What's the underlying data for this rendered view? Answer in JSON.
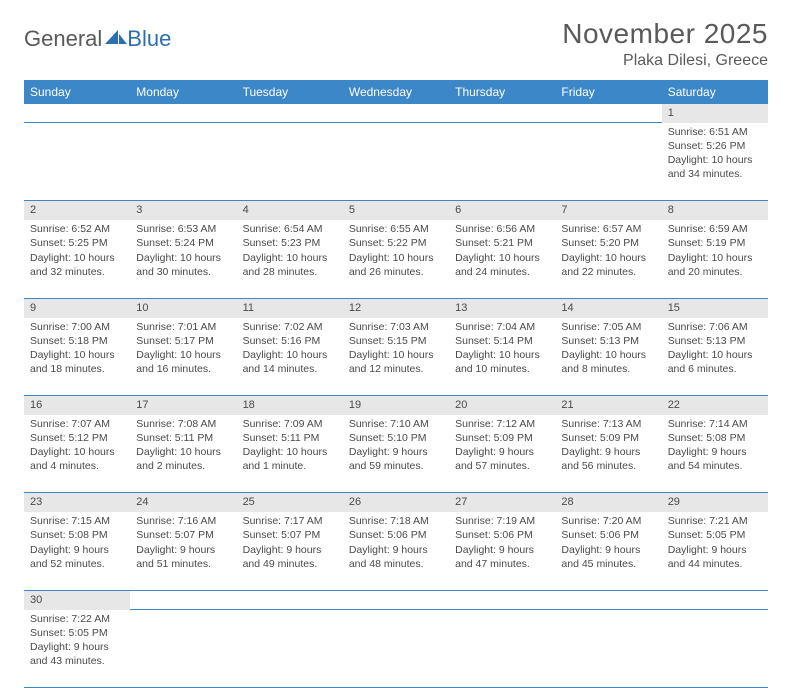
{
  "logo": {
    "general": "General",
    "blue": "Blue"
  },
  "title": "November 2025",
  "location": "Plaka Dilesi, Greece",
  "colors": {
    "header_bg": "#3b87c8",
    "header_text": "#ffffff",
    "daynum_bg": "#e7e7e7",
    "text": "#4a4a4a",
    "rule": "#3b87c8",
    "logo_blue": "#2c6fb0"
  },
  "day_headers": [
    "Sunday",
    "Monday",
    "Tuesday",
    "Wednesday",
    "Thursday",
    "Friday",
    "Saturday"
  ],
  "weeks": [
    [
      null,
      null,
      null,
      null,
      null,
      null,
      {
        "n": "1",
        "sr": "Sunrise: 6:51 AM",
        "ss": "Sunset: 5:26 PM",
        "d1": "Daylight: 10 hours",
        "d2": "and 34 minutes."
      }
    ],
    [
      {
        "n": "2",
        "sr": "Sunrise: 6:52 AM",
        "ss": "Sunset: 5:25 PM",
        "d1": "Daylight: 10 hours",
        "d2": "and 32 minutes."
      },
      {
        "n": "3",
        "sr": "Sunrise: 6:53 AM",
        "ss": "Sunset: 5:24 PM",
        "d1": "Daylight: 10 hours",
        "d2": "and 30 minutes."
      },
      {
        "n": "4",
        "sr": "Sunrise: 6:54 AM",
        "ss": "Sunset: 5:23 PM",
        "d1": "Daylight: 10 hours",
        "d2": "and 28 minutes."
      },
      {
        "n": "5",
        "sr": "Sunrise: 6:55 AM",
        "ss": "Sunset: 5:22 PM",
        "d1": "Daylight: 10 hours",
        "d2": "and 26 minutes."
      },
      {
        "n": "6",
        "sr": "Sunrise: 6:56 AM",
        "ss": "Sunset: 5:21 PM",
        "d1": "Daylight: 10 hours",
        "d2": "and 24 minutes."
      },
      {
        "n": "7",
        "sr": "Sunrise: 6:57 AM",
        "ss": "Sunset: 5:20 PM",
        "d1": "Daylight: 10 hours",
        "d2": "and 22 minutes."
      },
      {
        "n": "8",
        "sr": "Sunrise: 6:59 AM",
        "ss": "Sunset: 5:19 PM",
        "d1": "Daylight: 10 hours",
        "d2": "and 20 minutes."
      }
    ],
    [
      {
        "n": "9",
        "sr": "Sunrise: 7:00 AM",
        "ss": "Sunset: 5:18 PM",
        "d1": "Daylight: 10 hours",
        "d2": "and 18 minutes."
      },
      {
        "n": "10",
        "sr": "Sunrise: 7:01 AM",
        "ss": "Sunset: 5:17 PM",
        "d1": "Daylight: 10 hours",
        "d2": "and 16 minutes."
      },
      {
        "n": "11",
        "sr": "Sunrise: 7:02 AM",
        "ss": "Sunset: 5:16 PM",
        "d1": "Daylight: 10 hours",
        "d2": "and 14 minutes."
      },
      {
        "n": "12",
        "sr": "Sunrise: 7:03 AM",
        "ss": "Sunset: 5:15 PM",
        "d1": "Daylight: 10 hours",
        "d2": "and 12 minutes."
      },
      {
        "n": "13",
        "sr": "Sunrise: 7:04 AM",
        "ss": "Sunset: 5:14 PM",
        "d1": "Daylight: 10 hours",
        "d2": "and 10 minutes."
      },
      {
        "n": "14",
        "sr": "Sunrise: 7:05 AM",
        "ss": "Sunset: 5:13 PM",
        "d1": "Daylight: 10 hours",
        "d2": "and 8 minutes."
      },
      {
        "n": "15",
        "sr": "Sunrise: 7:06 AM",
        "ss": "Sunset: 5:13 PM",
        "d1": "Daylight: 10 hours",
        "d2": "and 6 minutes."
      }
    ],
    [
      {
        "n": "16",
        "sr": "Sunrise: 7:07 AM",
        "ss": "Sunset: 5:12 PM",
        "d1": "Daylight: 10 hours",
        "d2": "and 4 minutes."
      },
      {
        "n": "17",
        "sr": "Sunrise: 7:08 AM",
        "ss": "Sunset: 5:11 PM",
        "d1": "Daylight: 10 hours",
        "d2": "and 2 minutes."
      },
      {
        "n": "18",
        "sr": "Sunrise: 7:09 AM",
        "ss": "Sunset: 5:11 PM",
        "d1": "Daylight: 10 hours",
        "d2": "and 1 minute."
      },
      {
        "n": "19",
        "sr": "Sunrise: 7:10 AM",
        "ss": "Sunset: 5:10 PM",
        "d1": "Daylight: 9 hours",
        "d2": "and 59 minutes."
      },
      {
        "n": "20",
        "sr": "Sunrise: 7:12 AM",
        "ss": "Sunset: 5:09 PM",
        "d1": "Daylight: 9 hours",
        "d2": "and 57 minutes."
      },
      {
        "n": "21",
        "sr": "Sunrise: 7:13 AM",
        "ss": "Sunset: 5:09 PM",
        "d1": "Daylight: 9 hours",
        "d2": "and 56 minutes."
      },
      {
        "n": "22",
        "sr": "Sunrise: 7:14 AM",
        "ss": "Sunset: 5:08 PM",
        "d1": "Daylight: 9 hours",
        "d2": "and 54 minutes."
      }
    ],
    [
      {
        "n": "23",
        "sr": "Sunrise: 7:15 AM",
        "ss": "Sunset: 5:08 PM",
        "d1": "Daylight: 9 hours",
        "d2": "and 52 minutes."
      },
      {
        "n": "24",
        "sr": "Sunrise: 7:16 AM",
        "ss": "Sunset: 5:07 PM",
        "d1": "Daylight: 9 hours",
        "d2": "and 51 minutes."
      },
      {
        "n": "25",
        "sr": "Sunrise: 7:17 AM",
        "ss": "Sunset: 5:07 PM",
        "d1": "Daylight: 9 hours",
        "d2": "and 49 minutes."
      },
      {
        "n": "26",
        "sr": "Sunrise: 7:18 AM",
        "ss": "Sunset: 5:06 PM",
        "d1": "Daylight: 9 hours",
        "d2": "and 48 minutes."
      },
      {
        "n": "27",
        "sr": "Sunrise: 7:19 AM",
        "ss": "Sunset: 5:06 PM",
        "d1": "Daylight: 9 hours",
        "d2": "and 47 minutes."
      },
      {
        "n": "28",
        "sr": "Sunrise: 7:20 AM",
        "ss": "Sunset: 5:06 PM",
        "d1": "Daylight: 9 hours",
        "d2": "and 45 minutes."
      },
      {
        "n": "29",
        "sr": "Sunrise: 7:21 AM",
        "ss": "Sunset: 5:05 PM",
        "d1": "Daylight: 9 hours",
        "d2": "and 44 minutes."
      }
    ],
    [
      {
        "n": "30",
        "sr": "Sunrise: 7:22 AM",
        "ss": "Sunset: 5:05 PM",
        "d1": "Daylight: 9 hours",
        "d2": "and 43 minutes."
      },
      null,
      null,
      null,
      null,
      null,
      null
    ]
  ]
}
